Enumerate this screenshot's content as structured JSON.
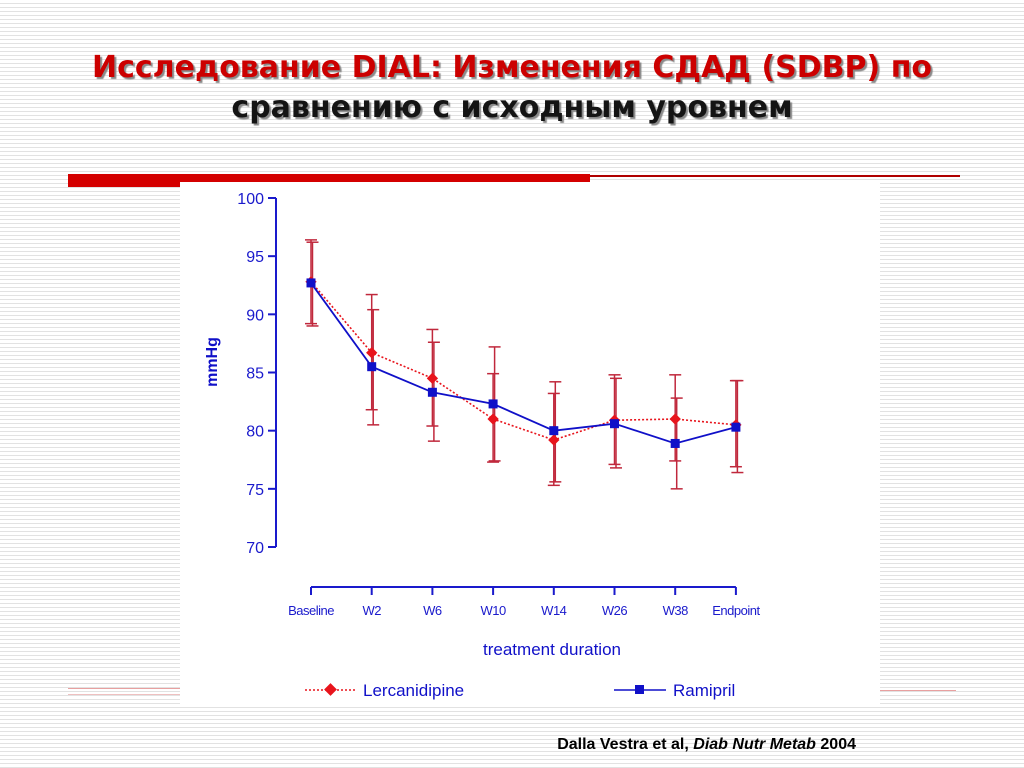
{
  "slide": {
    "title_line1": "Исследование  DIAL: Изменения СДАД (SDBP) по",
    "title_line2": "сравнению с исходным уровнем"
  },
  "citation": {
    "authors": "Dalla Vestra  et al,",
    "journal": "Diab Nutr Metab",
    "year": "2004"
  },
  "colors": {
    "title": "#cc0000",
    "lercanidipine": "#e8141c",
    "ramipril": "#1010c8",
    "error_bar": "#c0283c",
    "axis": "#1a1acc"
  },
  "chart_data": {
    "type": "line",
    "title": "",
    "xlabel": "treatment duration",
    "ylabel": "mmHg",
    "categories": [
      "Baseline",
      "W2",
      "W6",
      "W10",
      "W14",
      "W26",
      "W38",
      "Endpoint"
    ],
    "ylim": [
      70,
      100
    ],
    "yticks": [
      70,
      75,
      80,
      85,
      90,
      95,
      100
    ],
    "grid": false,
    "legend_position": "bottom",
    "series": [
      {
        "name": "Lercanidipine",
        "line_style": "dotted",
        "marker": "diamond",
        "color": "#e8141c",
        "values": [
          92.8,
          86.7,
          84.5,
          81.0,
          79.2,
          80.9,
          81.0,
          80.5
        ],
        "upper": [
          96.4,
          91.7,
          88.7,
          84.9,
          83.2,
          84.8,
          84.8,
          84.3
        ],
        "lower": [
          89.2,
          81.8,
          80.4,
          77.3,
          75.3,
          77.1,
          77.4,
          76.9
        ]
      },
      {
        "name": "Ramipril",
        "line_style": "solid",
        "marker": "square",
        "color": "#1010c8",
        "values": [
          92.7,
          85.5,
          83.3,
          82.3,
          80.0,
          80.6,
          78.9,
          80.3
        ],
        "upper": [
          96.2,
          90.4,
          87.6,
          87.2,
          84.2,
          84.5,
          82.8,
          84.3
        ],
        "lower": [
          89.0,
          80.5,
          79.1,
          77.4,
          75.6,
          76.8,
          75.0,
          76.4
        ]
      }
    ]
  }
}
